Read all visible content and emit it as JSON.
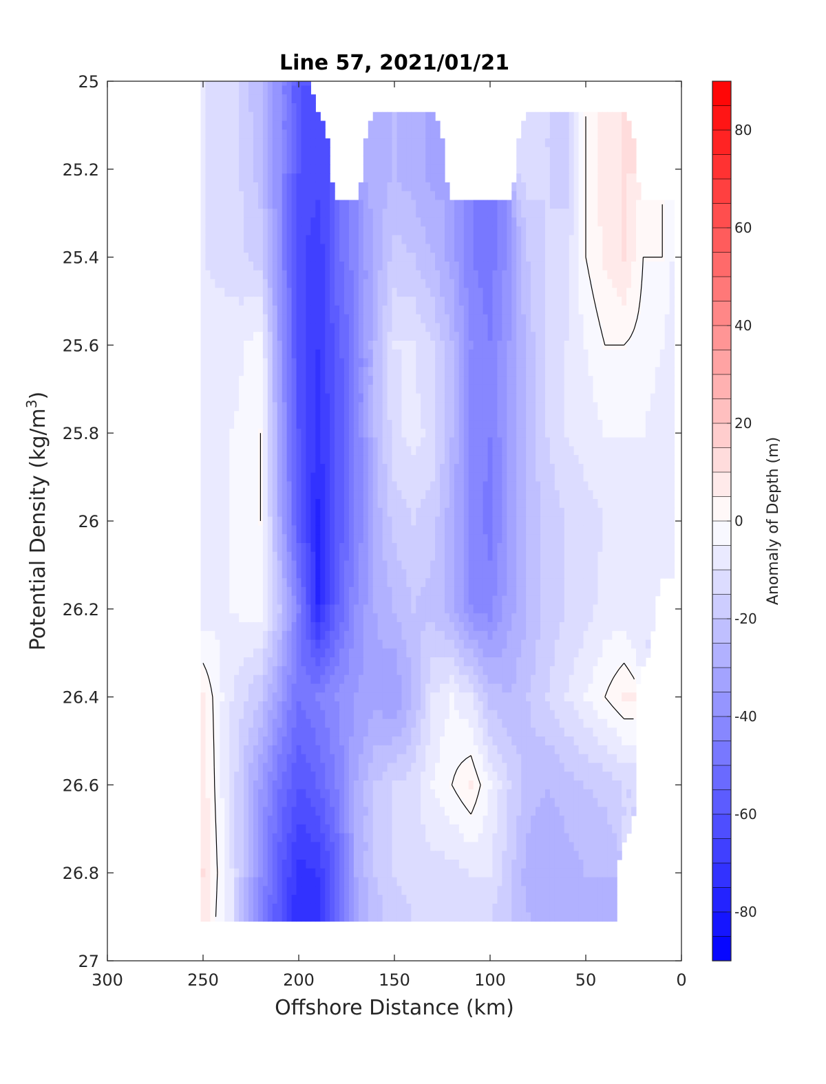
{
  "chart_data": {
    "type": "heatmap",
    "subtype": "filled-contour",
    "title": "Line 57, 2021/01/21",
    "xlabel": "Offshore Distance (km)",
    "ylabel_main": "Potential Density (kg/m",
    "ylabel_sup": "3",
    "ylabel_close": ")",
    "xlim": [
      300,
      0
    ],
    "x_reversed": true,
    "ylim": [
      25,
      27
    ],
    "y_reversed": true,
    "xticks": [
      300,
      250,
      200,
      150,
      100,
      50,
      0
    ],
    "yticks": [
      25,
      25.2,
      25.4,
      25.6,
      25.8,
      26,
      26.2,
      26.4,
      26.6,
      26.8,
      27
    ],
    "colorbar": {
      "label": "Anomaly of Depth (m)",
      "range": [
        -90,
        90
      ],
      "level_step": 5,
      "ticks": [
        80,
        60,
        40,
        20,
        0,
        -20,
        -40,
        -60,
        -80
      ],
      "colormap": "blue-white-red",
      "low_color": "#0000ff",
      "mid_color": "#ffffff",
      "high_color": "#ff0000"
    },
    "contour_line_level": 0,
    "data_extent": {
      "x_range": [
        250,
        5
      ],
      "y_range": [
        25,
        26.9
      ]
    },
    "grid": {
      "x": [
        250,
        235,
        220,
        210,
        200,
        190,
        180,
        170,
        160,
        150,
        140,
        130,
        120,
        110,
        100,
        90,
        80,
        70,
        60,
        50,
        40,
        30,
        20,
        10,
        5
      ],
      "y": [
        25.0,
        25.2,
        25.4,
        25.6,
        25.8,
        26.0,
        26.2,
        26.4,
        26.6,
        26.8,
        26.9
      ],
      "values": [
        [
          -10,
          -12,
          -25,
          -40,
          -60,
          null,
          null,
          null,
          null,
          null,
          null,
          null,
          null,
          null,
          null,
          null,
          null,
          null,
          null,
          null,
          null,
          null,
          null,
          null,
          null
        ],
        [
          -10,
          -12,
          -22,
          -40,
          -60,
          -62,
          null,
          null,
          -28,
          -25,
          -28,
          -32,
          null,
          null,
          null,
          null,
          -12,
          -15,
          -18,
          0,
          8,
          10,
          null,
          null,
          null
        ],
        [
          -10,
          -12,
          -18,
          -40,
          -62,
          -70,
          -52,
          -42,
          -28,
          -18,
          -20,
          -25,
          -32,
          -45,
          -48,
          -38,
          -20,
          -15,
          -12,
          0,
          6,
          10,
          0,
          0,
          -5
        ],
        [
          -8,
          -8,
          -2,
          -35,
          -62,
          -70,
          -58,
          -45,
          -25,
          -10,
          -10,
          -15,
          -25,
          -40,
          -45,
          -35,
          -22,
          -15,
          -10,
          -5,
          0,
          0,
          -2,
          -5,
          -8
        ],
        [
          -8,
          -5,
          0,
          -32,
          -60,
          -72,
          -60,
          -45,
          -25,
          -12,
          -8,
          -12,
          -25,
          -42,
          -45,
          -35,
          -22,
          -15,
          -10,
          -8,
          -5,
          -5,
          -5,
          -8,
          -10
        ],
        [
          -8,
          -5,
          0,
          -30,
          -58,
          -76,
          -60,
          -45,
          -28,
          -18,
          -15,
          -18,
          -28,
          -42,
          -47,
          -35,
          -25,
          -18,
          -15,
          -12,
          -10,
          -8,
          -8,
          -10,
          -10
        ],
        [
          -8,
          -5,
          -2,
          -20,
          -45,
          -75,
          -55,
          -40,
          -30,
          -25,
          -20,
          -22,
          -28,
          -40,
          -42,
          -32,
          -25,
          -18,
          -15,
          -12,
          -8,
          -8,
          -10,
          null,
          null
        ],
        [
          5,
          -10,
          -20,
          -35,
          -50,
          -45,
          -40,
          -35,
          -32,
          -35,
          -25,
          -10,
          -5,
          -10,
          -22,
          -25,
          -20,
          -15,
          -10,
          -5,
          0,
          5,
          null,
          null,
          null
        ],
        [
          8,
          -12,
          -35,
          -50,
          -60,
          -55,
          -45,
          -30,
          -20,
          -15,
          -12,
          -5,
          0,
          5,
          -5,
          -15,
          -22,
          -25,
          -22,
          -20,
          -18,
          -15,
          null,
          null,
          null
        ],
        [
          10,
          -10,
          -40,
          -58,
          -72,
          -70,
          -55,
          -30,
          -20,
          -15,
          -12,
          -12,
          -12,
          -10,
          -10,
          -18,
          -28,
          -30,
          -28,
          -25,
          -25,
          null,
          null,
          null,
          null
        ],
        [
          8,
          -10,
          -42,
          -60,
          -75,
          -72,
          -55,
          -32,
          -22,
          -18,
          -15,
          -15,
          -15,
          -15,
          -15,
          -20,
          -25,
          -28,
          -28,
          -28,
          -28,
          null,
          null,
          null,
          null
        ]
      ]
    }
  }
}
